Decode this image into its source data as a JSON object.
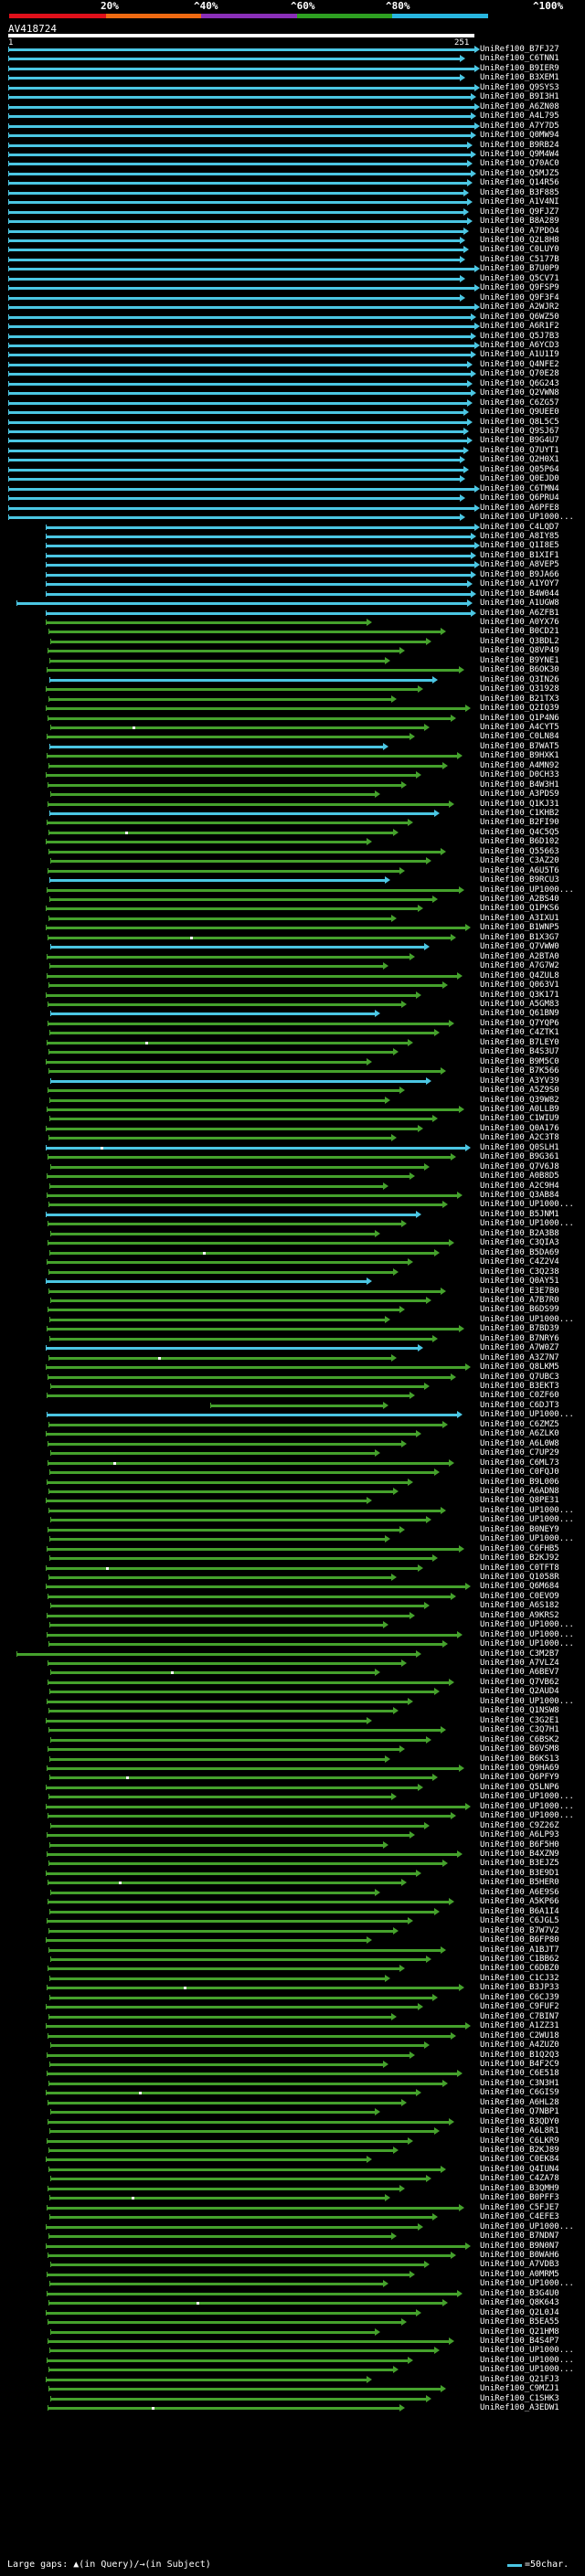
{
  "scale": {
    "labels": [
      "20%",
      "^40%",
      "^60%",
      "^80%",
      "^100%"
    ],
    "colors": [
      "#e0101a",
      "#f06a12",
      "#8a2fb8",
      "#2ea021",
      "#28b6e0"
    ]
  },
  "query": {
    "name": "AV418724",
    "start": "1",
    "end": "251"
  },
  "colors": {
    "blue": "#4bc6e3",
    "green": "#45a12c"
  },
  "hits": [
    "UniRef100_B7FJ27",
    "UniRef100_C6TNN1",
    "UniRef100_B9IER9",
    "UniRef100_B3XEM1",
    "UniRef100_Q9SYS3",
    "UniRef100_B9I3H1",
    "UniRef100_A6ZN08",
    "UniRef100_A4L795",
    "UniRef100_A7Y7D5",
    "UniRef100_Q0MW94",
    "UniRef100_B9RB24",
    "UniRef100_Q9M4W4",
    "UniRef100_Q70AC0",
    "UniRef100_Q5MJZ5",
    "UniRef100_Q14R56",
    "UniRef100_B3F885",
    "UniRef100_A1V4NI",
    "UniRef100_Q9FJZ7",
    "UniRef100_B8A289",
    "UniRef100_A7PDO4",
    "UniRef100_Q2L8H8",
    "UniRef100_C0LUY0",
    "UniRef100_C5177B",
    "UniRef100_B7U0P9",
    "UniRef100_Q5CV71",
    "UniRef100_Q9FSP9",
    "UniRef100_Q9F3F4",
    "UniRef100_A2WJR2",
    "UniRef100_Q6WZ50",
    "UniRef100_A6R1F2",
    "UniRef100_Q5J7B3",
    "UniRef100_A6YCD3",
    "UniRef100_A1U1I9",
    "UniRef100_Q4NFE2",
    "UniRef100_Q70E28",
    "UniRef100_Q6G243",
    "UniRef100_Q2VWN8",
    "UniRef100_C6ZG57",
    "UniRef100_Q9UEE0",
    "UniRef100_Q8L5C5",
    "UniRef100_Q9SJ67",
    "UniRef100_B9G4U7",
    "UniRef100_Q7UYT1",
    "UniRef100_Q2H0X1",
    "UniRef100_Q05P64",
    "UniRef100_Q0EJD0",
    "UniRef100_C6TMN4",
    "UniRef100_Q6PRU4",
    "UniRef100_A6PFE8",
    "UniRef100_UP1000...",
    "UniRef100_C4LQD7",
    "UniRef100_A8IY85",
    "UniRef100_Q1I8E5",
    "UniRef100_B1XIF1",
    "UniRef100_A8VEP5",
    "UniRef100_B9JA66",
    "UniRef100_A1YOY7",
    "UniRef100_B4W044",
    "UniRef100_A1UGW8",
    "UniRef100_A6ZFB1",
    "UniRef100_A0YX76",
    "UniRef100_B0CD21",
    "UniRef100_Q3BDL2",
    "UniRef100_Q8VP49",
    "UniRef100_B9YNE1",
    "UniRef100_B6OK30",
    "UniRef100_Q3IN26",
    "UniRef100_Q31928",
    "UniRef100_B21TX3",
    "UniRef100_Q2IQ39",
    "UniRef100_Q1P4N6",
    "UniRef100_A4CYT5",
    "UniRef100_C0LN84",
    "UniRef100_B7WAT5",
    "UniRef100_B9HXK1",
    "UniRef100_A4MN92",
    "UniRef100_D0CH33",
    "UniRef100_B4W3H1",
    "UniRef100_A3PDS9",
    "UniRef100_Q1KJ31",
    "UniRef100_C1KHB2",
    "UniRef100_B2FI90",
    "UniRef100_Q4C5Q5",
    "UniRef100_B6D102",
    "UniRef100_Q55663",
    "UniRef100_C3AZ20",
    "UniRef100_A6U5T6",
    "UniRef100_B9RCU3",
    "UniRef100_UP1000...",
    "UniRef100_A2BS40",
    "UniRef100_Q1PKS6",
    "UniRef100_A3IXU1",
    "UniRef100_B1WNP5",
    "UniRef100_B1X3G7",
    "UniRef100_Q7VWW0",
    "UniRef100_A2BTA0",
    "UniRef100_A7G7W2",
    "UniRef100_Q4ZUL8",
    "UniRef100_Q063V1",
    "UniRef100_Q3K171",
    "UniRef100_A5GM83",
    "UniRef100_Q61BN9",
    "UniRef100_Q7YQP6",
    "UniRef100_C4ZTK1",
    "UniRef100_B7LEY0",
    "UniRef100_B4S3U7",
    "UniRef100_B9M5C0",
    "UniRef100_B7K566",
    "UniRef100_A3YV39",
    "UniRef100_A5Z9S0",
    "UniRef100_Q39W82",
    "UniRef100_A0LLB9",
    "UniRef100_C1WIU9",
    "UniRef100_Q0A176",
    "UniRef100_A2C3T8",
    "UniRef100_Q0SLH1",
    "UniRef100_B9G361",
    "UniRef100_Q7V6J8",
    "UniRef100_A0B8D5",
    "UniRef100_A2C9H4",
    "UniRef100_Q3AB84",
    "UniRef100_UP1000...",
    "UniRef100_B5JNM1",
    "UniRef100_UP1000...",
    "UniRef100_B2A3B8",
    "UniRef100_C3QIA3",
    "UniRef100_B5DA69",
    "UniRef100_C4Z2V4",
    "UniRef100_C3Q238",
    "UniRef100_Q0AY51",
    "UniRef100_E3E7B0",
    "UniRef100_A7B7R0",
    "UniRef100_B6DS99",
    "UniRef100_UP1000...",
    "UniRef100_B7BD39",
    "UniRef100_B7NRY6",
    "UniRef100_A7W0Z7",
    "UniRef100_A3Z7N7",
    "UniRef100_Q8LKM5",
    "UniRef100_Q7UBC3",
    "UniRef100_B3EKT3",
    "UniRef100_C0ZF60",
    "UniRef100_C6DJT3",
    "UniRef100_UP1000...",
    "UniRef100_C6ZMZ5",
    "UniRef100_A6ZLK0",
    "UniRef100_A6L0W8",
    "UniRef100_C7UP29",
    "UniRef100_C6ML73",
    "UniRef100_C0FQJ0",
    "UniRef100_B9L006",
    "UniRef100_A6ADN8",
    "UniRef100_Q8PE31",
    "UniRef100_UP1000...",
    "UniRef100_UP1000...",
    "UniRef100_B0NEY9",
    "UniRef100_UP1000...",
    "UniRef100_C6FHB5",
    "UniRef100_B2KJ92",
    "UniRef100_C0TFT8",
    "UniRef100_Q1058R",
    "UniRef100_Q6M684",
    "UniRef100_C0EVO9",
    "UniRef100_A6S182",
    "UniRef100_A9KRS2",
    "UniRef100_UP1000...",
    "UniRef100_UP1000...",
    "UniRef100_UP1000...",
    "UniRef100_C3M2B7",
    "UniRef100_A7VLZ4",
    "UniRef100_A6BEV7",
    "UniRef100_Q7VB62",
    "UniRef100_Q2AUD4",
    "UniRef100_UP1000...",
    "UniRef100_Q1NSW8",
    "UniRef100_C3G2E1",
    "UniRef100_C3Q7H1",
    "UniRef100_C6BSK2",
    "UniRef100_B6VSM8",
    "UniRef100_B6KS13",
    "UniRef100_Q9HA69",
    "UniRef100_Q6PFY9",
    "UniRef100_Q5LNP6",
    "UniRef100_UP1000...",
    "UniRef100_UP1000...",
    "UniRef100_UP1000...",
    "UniRef100_C9Z26Z",
    "UniRef100_A6LP93",
    "UniRef100_B6F5H0",
    "UniRef100_B4XZN9",
    "UniRef100_B3EJZ5",
    "UniRef100_B3E9D1",
    "UniRef100_B5HER0",
    "UniRef100_A6E9S6",
    "UniRef100_A5KP66",
    "UniRef100_B6A1I4",
    "UniRef100_C6JGL5",
    "UniRef100_B7W7V2",
    "UniRef100_B6FP80",
    "UniRef100_A1BJT7",
    "UniRef100_C1BB62",
    "UniRef100_C6DBZ0",
    "UniRef100_C1CJ32",
    "UniRef100_B3JP33",
    "UniRef100_C6CJ39",
    "UniRef100_C9FUF2",
    "UniRef100_C7BIN7",
    "UniRef100_A1ZZ31",
    "UniRef100_C2WU18",
    "UniRef100_A4ZUZ0",
    "UniRef100_B1Q2Q3",
    "UniRef100_B4F2C9",
    "UniRef100_C6E518",
    "UniRef100_C3N3H1",
    "UniRef100_C6GIS9",
    "UniRef100_A6HL28",
    "UniRef100_Q7NBP1",
    "UniRef100_B3QDY0",
    "UniRef100_A6L8R1",
    "UniRef100_C6LKR9",
    "UniRef100_B2KJ89",
    "UniRef100_C0EK84",
    "UniRef100_Q4IUN4",
    "UniRef100_C4ZA78",
    "UniRef100_B3QMH9",
    "UniRef100_B0PFF3",
    "UniRef100_C5FJE7",
    "UniRef100_C4EFE3",
    "UniRef100_UP1000...",
    "UniRef100_B7NDN7",
    "UniRef100_B9N0N7",
    "UniRef100_B0WAH6",
    "UniRef100_A7VDB3",
    "UniRef100_A0MRM5",
    "UniRef100_UP1000...",
    "UniRef100_B3G4U0",
    "UniRef100_Q8K643",
    "UniRef100_Q2L0J4",
    "UniRef100_B5EA55",
    "UniRef100_Q21HM8",
    "UniRef100_B4S4P7",
    "UniRef100_UP1000...",
    "UniRef100_UP1000...",
    "UniRef100_UP1000...",
    "UniRef100_Q21FJ3",
    "UniRef100_C9MZJ1",
    "UniRef100_C1SHK3",
    "UniRef100_A3EDW1"
  ],
  "legend": {
    "gaps": "Large gaps: ▲(in Query)/→(in Subject)",
    "scale": "=50char."
  }
}
